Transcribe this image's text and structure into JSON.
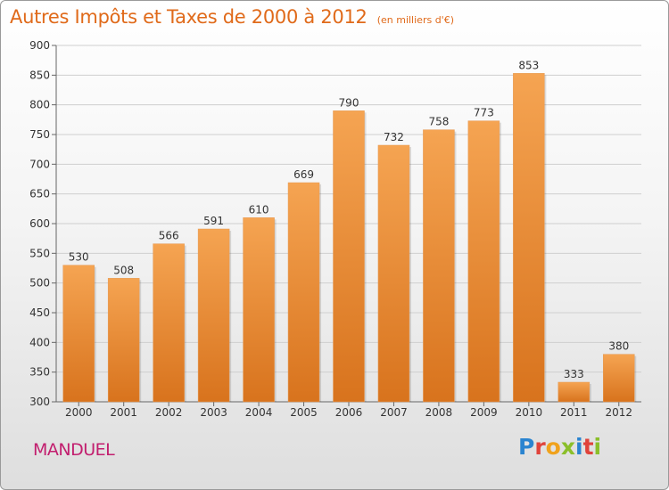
{
  "chart_data": {
    "type": "bar",
    "title": "Autres Impôts et Taxes de 2000 à 2012",
    "subtitle": "(en milliers d'€)",
    "categories": [
      "2000",
      "2001",
      "2002",
      "2003",
      "2004",
      "2005",
      "2006",
      "2007",
      "2008",
      "2009",
      "2010",
      "2011",
      "2012"
    ],
    "values": [
      530,
      508,
      566,
      591,
      610,
      669,
      790,
      732,
      758,
      773,
      853,
      333,
      380
    ],
    "xlabel": "",
    "ylabel": "",
    "ylim": [
      300,
      900
    ],
    "yticks": [
      300,
      350,
      400,
      450,
      500,
      550,
      600,
      650,
      700,
      750,
      800,
      850,
      900
    ],
    "grid": true,
    "bar_color_top": "#f5a452",
    "bar_color_bottom": "#d8731d"
  },
  "footer": {
    "city": "MANDUEL",
    "logo_letters": [
      {
        "ch": "P",
        "color": "#2b84d0"
      },
      {
        "ch": "r",
        "color": "#e0433b"
      },
      {
        "ch": "o",
        "color": "#f0a21c"
      },
      {
        "ch": "x",
        "color": "#8bbf2a"
      },
      {
        "ch": "i",
        "color": "#2b84d0"
      },
      {
        "ch": "t",
        "color": "#e0433b"
      },
      {
        "ch": "i",
        "color": "#8bbf2a"
      }
    ]
  },
  "colors": {
    "title": "#e06a1a",
    "city": "#c21e6e"
  }
}
